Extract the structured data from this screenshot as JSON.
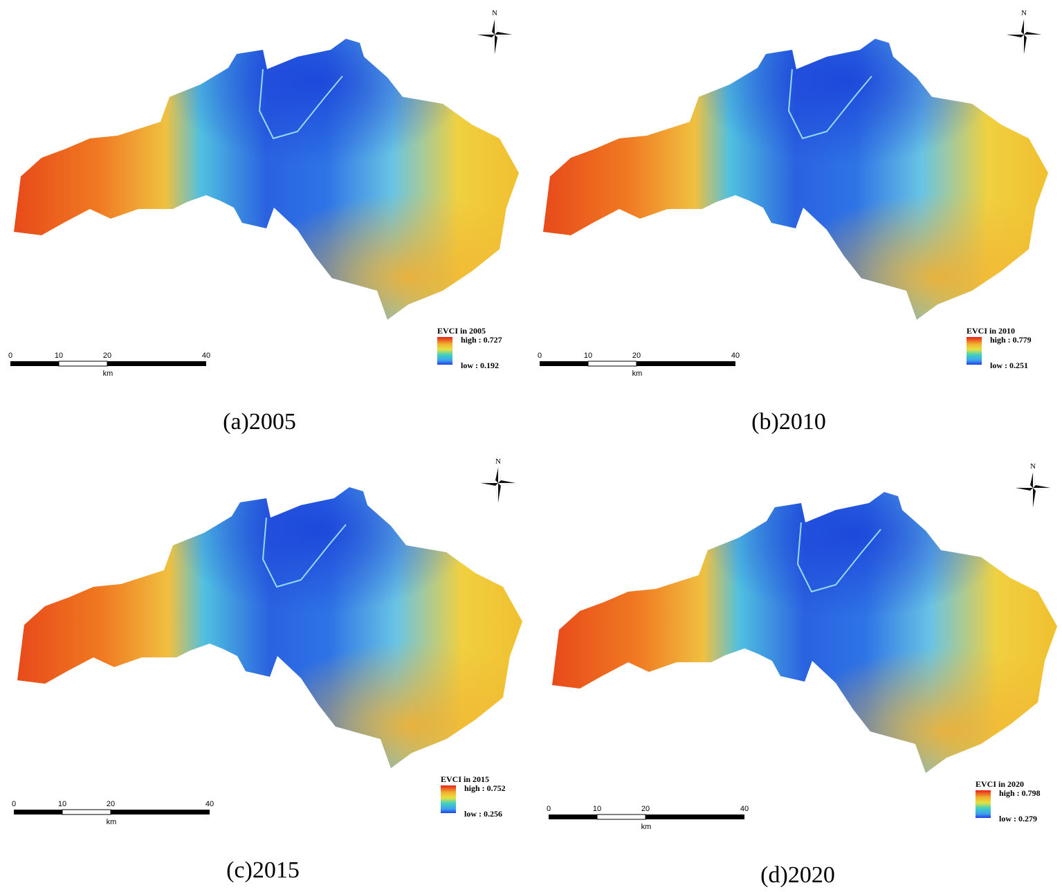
{
  "panels": [
    {
      "caption": "(a)2005",
      "north": "N",
      "legend": {
        "title": "EVCI in 2005",
        "high": "high : 0.727",
        "low": "low : 0.192"
      },
      "scale_bar": {
        "ticks": [
          "0",
          "10",
          "20",
          "40"
        ],
        "unit": "km"
      }
    },
    {
      "caption": "(b)2010",
      "north": "N",
      "legend": {
        "title": "EVCI in 2010",
        "high": "high : 0.779",
        "low": "low : 0.251"
      },
      "scale_bar": {
        "ticks": [
          "0",
          "10",
          "20",
          "40"
        ],
        "unit": "km"
      }
    },
    {
      "caption": "(c)2015",
      "north": "N",
      "legend": {
        "title": "EVCI in 2015",
        "high": "high : 0.752",
        "low": "low : 0.256"
      },
      "scale_bar": {
        "ticks": [
          "0",
          "10",
          "20",
          "40"
        ],
        "unit": "km"
      }
    },
    {
      "caption": "(d)2020",
      "north": "N",
      "legend": {
        "title": "EVCI in 2020",
        "high": "high : 0.798",
        "low": "low : 0.279"
      },
      "scale_bar": {
        "ticks": [
          "0",
          "10",
          "20",
          "40"
        ],
        "unit": "km"
      }
    }
  ]
}
